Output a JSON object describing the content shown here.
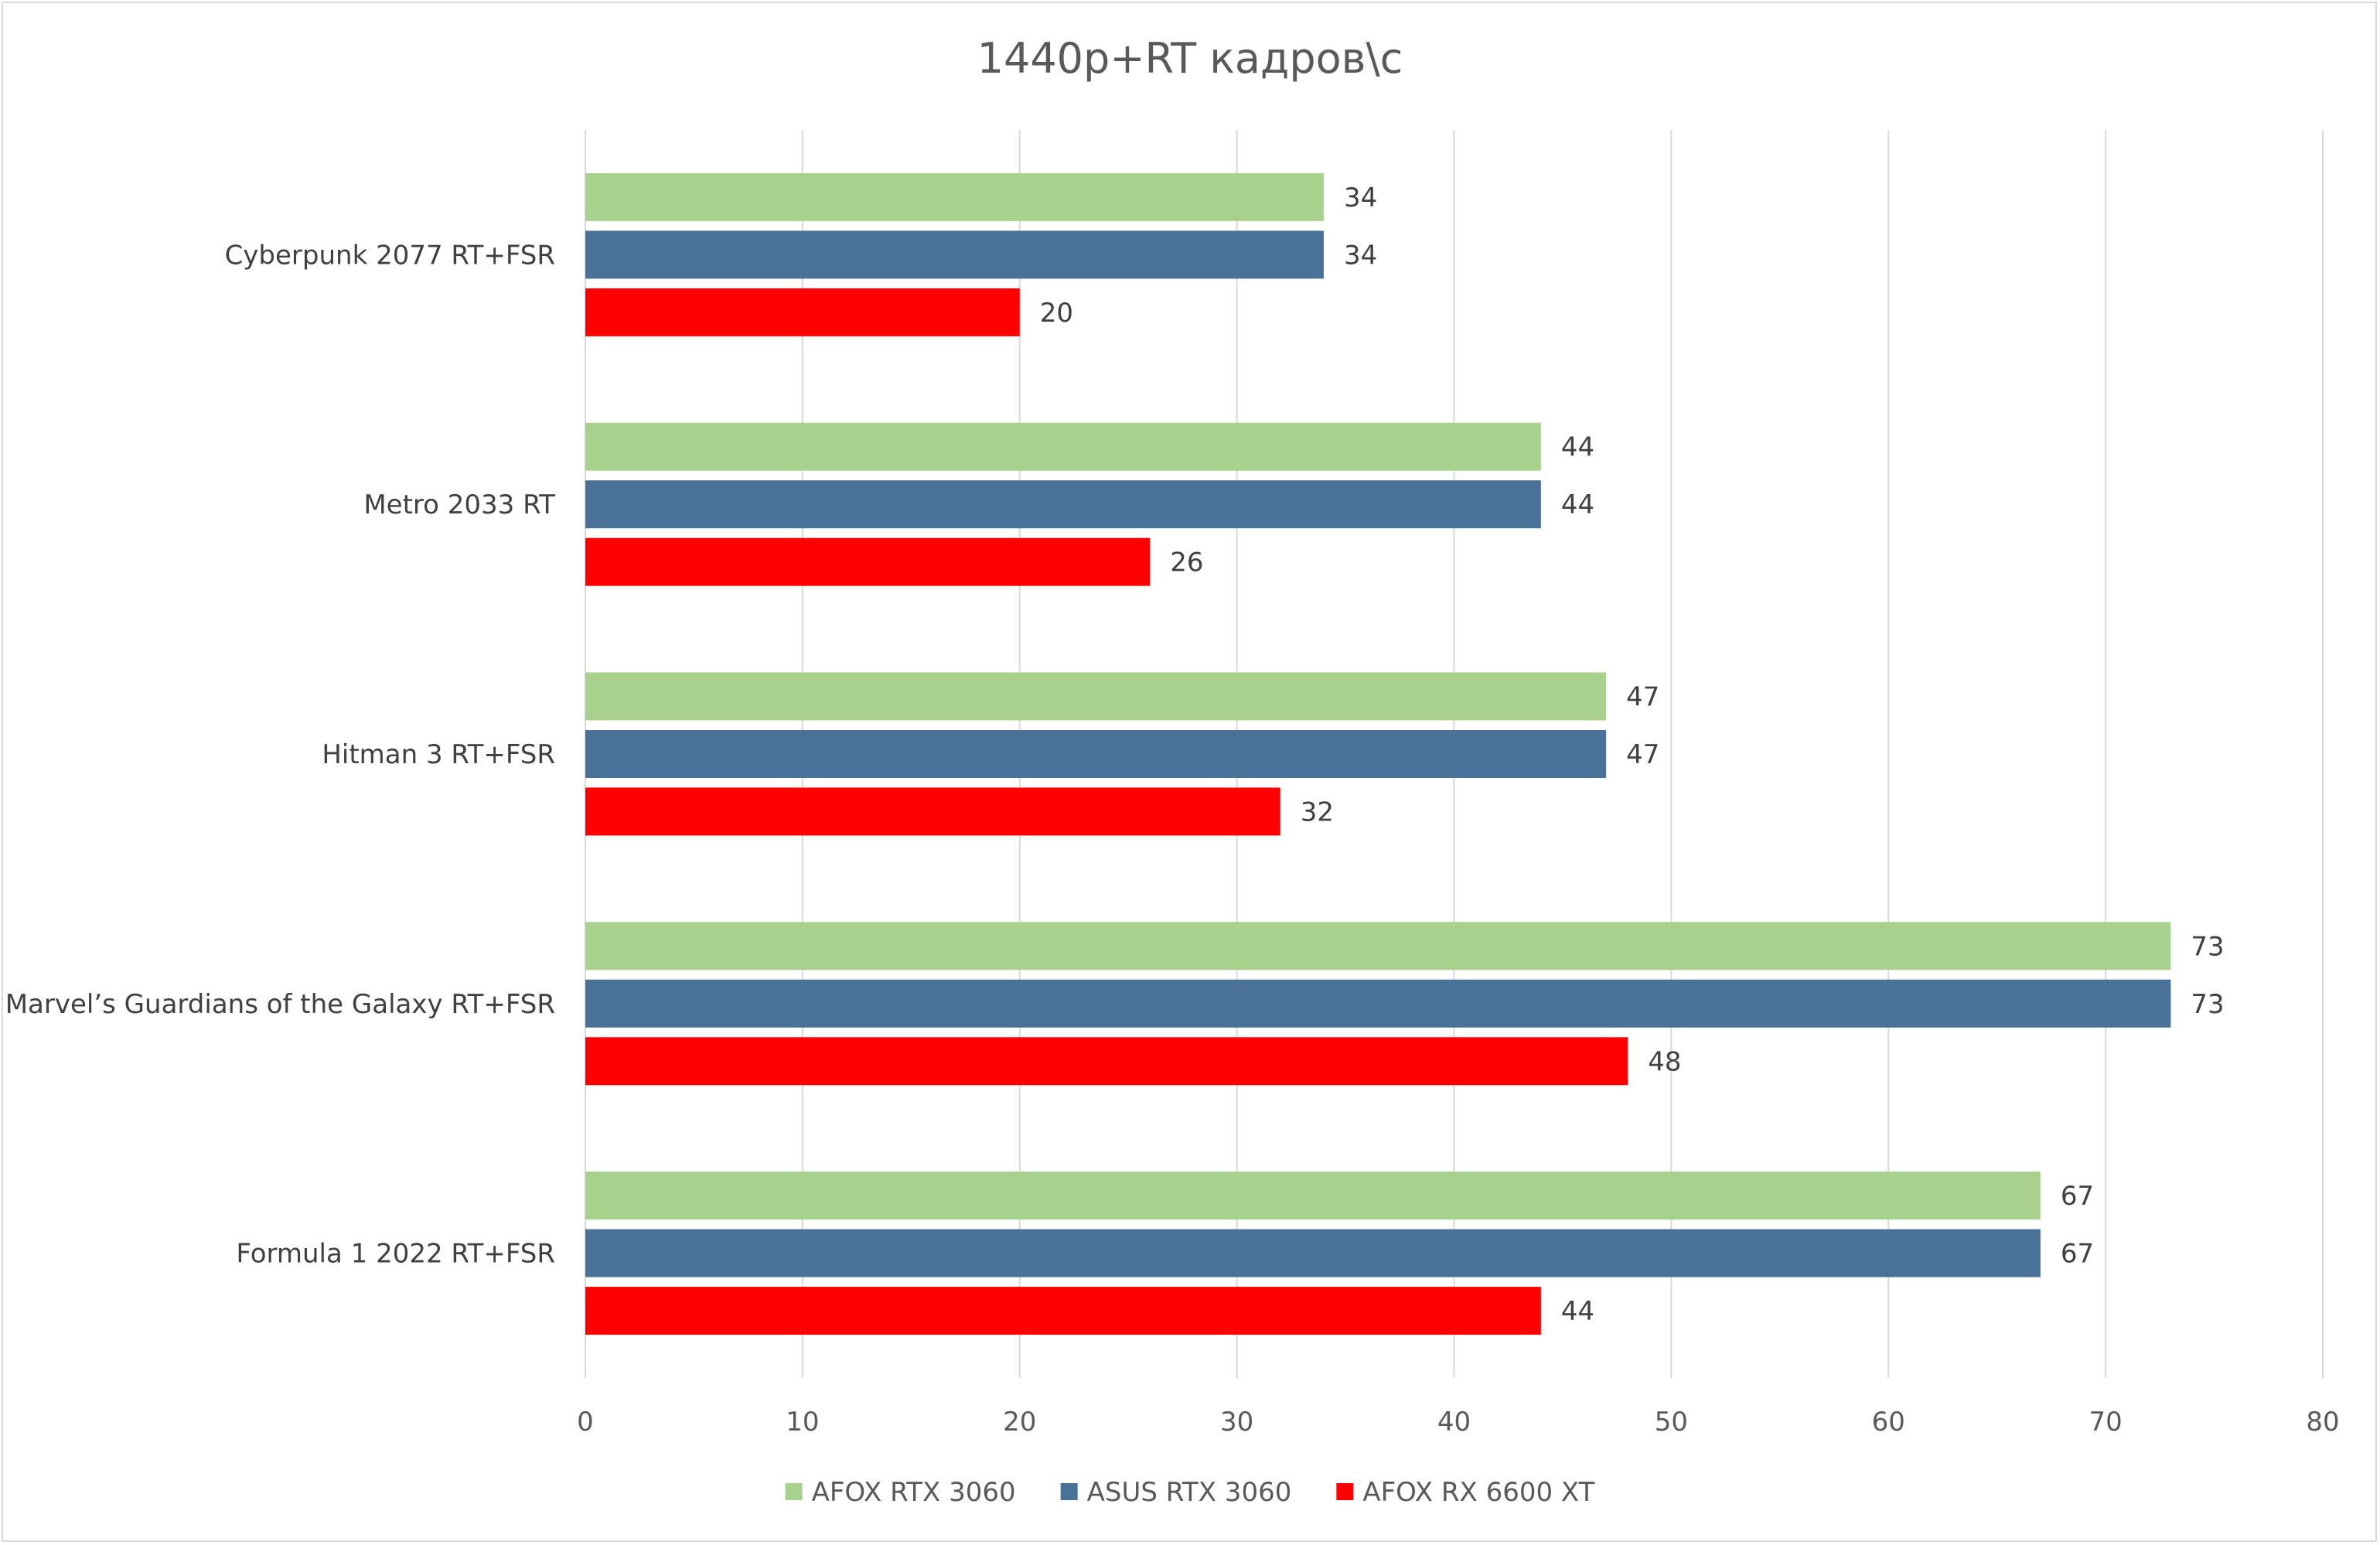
{
  "chart_data": {
    "type": "bar",
    "orientation": "horizontal",
    "title": "1440p+RT кадров\\с",
    "xlabel": "",
    "ylabel": "",
    "xlim": [
      0,
      80
    ],
    "ticks": [
      0,
      10,
      20,
      30,
      40,
      50,
      60,
      70,
      80
    ],
    "tick_labels": [
      "0",
      "10",
      "20",
      "30",
      "40",
      "50",
      "60",
      "70",
      "80"
    ],
    "grid": true,
    "legend_position": "bottom",
    "categories": [
      "Cyberpunk 2077 RT+FSR",
      "Metro 2033 RT",
      "Hitman 3 RT+FSR",
      "Marvel’s Guardians of the Galaxy RT+FSR",
      "Formula 1 2022 RT+FSR"
    ],
    "series": [
      {
        "name": "AFOX RTX 3060",
        "color": "#a9d18e",
        "values": [
          34,
          44,
          47,
          73,
          67
        ],
        "labels": [
          "34",
          "44",
          "47",
          "73",
          "67"
        ]
      },
      {
        "name": "ASUS RTX 3060",
        "color": "#4a7298",
        "values": [
          34,
          44,
          47,
          73,
          67
        ],
        "labels": [
          "34",
          "44",
          "47",
          "73",
          "67"
        ]
      },
      {
        "name": "AFOX RX 6600 XT",
        "color": "#ff0000",
        "values": [
          20,
          26,
          32,
          48,
          44
        ],
        "labels": [
          "20",
          "26",
          "32",
          "48",
          "44"
        ]
      }
    ]
  }
}
